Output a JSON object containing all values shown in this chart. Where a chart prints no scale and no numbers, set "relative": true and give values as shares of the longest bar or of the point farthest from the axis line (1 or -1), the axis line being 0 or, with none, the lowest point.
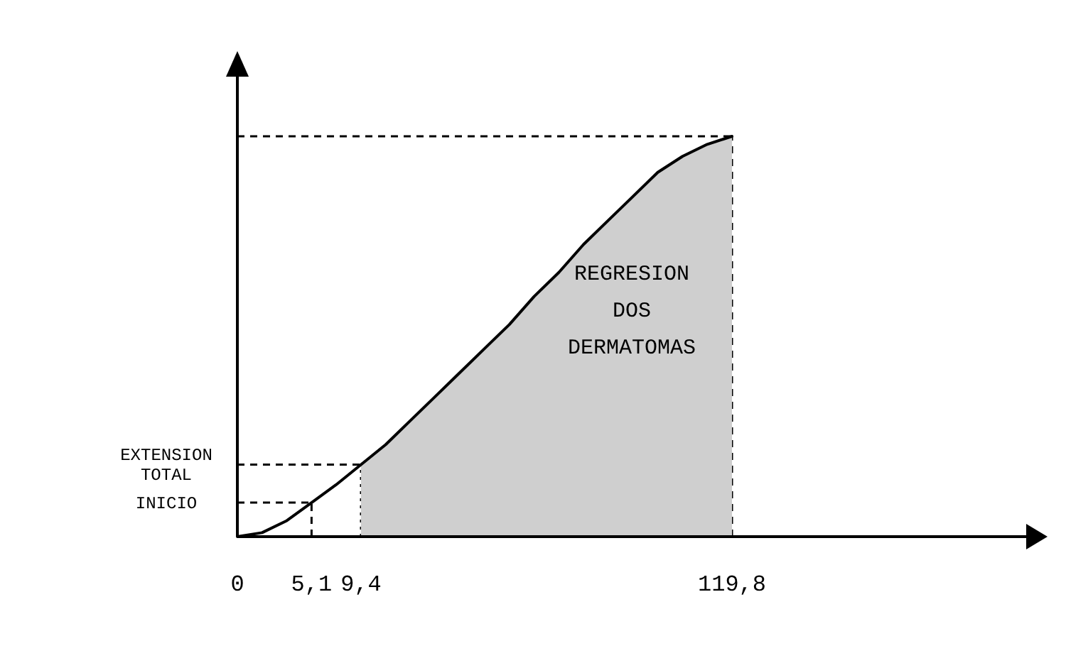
{
  "chart_data": {
    "type": "line",
    "relative": true,
    "categories": [
      "0",
      null,
      null,
      "5,1",
      null,
      "9,4",
      null,
      null,
      null,
      null,
      null,
      null,
      null,
      null,
      null,
      null,
      null,
      null,
      null,
      null,
      "119,8"
    ],
    "series": [
      {
        "type": "area",
        "name": "REGRESION DOS DERMATOMAS",
        "color": "#cfcfcf",
        "values": [
          null,
          null,
          null,
          null,
          null,
          0.18,
          0.23,
          0.29,
          0.35,
          0.41,
          0.47,
          0.53,
          0.6,
          0.66,
          0.73,
          0.79,
          0.85,
          0.91,
          0.95,
          0.98,
          1
        ]
      },
      {
        "color": "#000000",
        "values": [
          0,
          0.01,
          0.04,
          0.085,
          0.13,
          0.18,
          0.23,
          0.29,
          0.35,
          0.41,
          0.47,
          0.53,
          0.6,
          0.66,
          0.73,
          0.79,
          0.85,
          0.91,
          0.95,
          0.98,
          1
        ]
      }
    ],
    "line_style": "solid",
    "marker": "none",
    "ref_lines": [
      {
        "axis": "x",
        "value": "5,1",
        "line_style": "dashed"
      },
      {
        "axis": "x",
        "value": "9,4",
        "line_style": "dotted"
      },
      {
        "axis": "x",
        "value": "119,8",
        "line_style": "dashed"
      },
      {
        "axis": "y",
        "value": 0.085,
        "label": "INICIO",
        "line_style": "dashed"
      },
      {
        "axis": "y",
        "value": 0.18,
        "label": "EXTENSION TOTAL",
        "line_style": "dashed"
      },
      {
        "axis": "y",
        "value": 1,
        "line_style": "dashed"
      }
    ]
  }
}
